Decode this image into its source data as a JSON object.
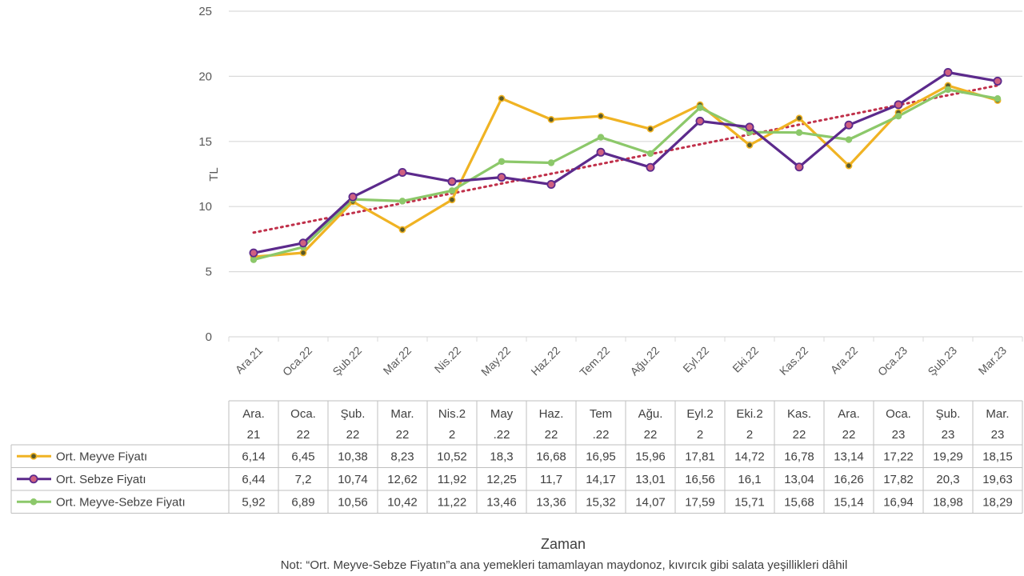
{
  "chart_data": {
    "type": "line",
    "xlabel": "Zaman",
    "ylabel": "TL",
    "ylim": [
      0,
      25
    ],
    "yticks": [
      "0",
      "5",
      "10",
      "15",
      "20",
      "25"
    ],
    "grid": true,
    "categories": [
      "Ara.21",
      "Oca.22",
      "Şub.22",
      "Mar.22",
      "Nis.22",
      "May.22",
      "Haz.22",
      "Tem.22",
      "Ağu.22",
      "Eyl.22",
      "Eki.22",
      "Kas.22",
      "Ara.22",
      "Oca.23",
      "Şub.23",
      "Mar.23"
    ],
    "table_headers": [
      [
        "Ara.",
        "21"
      ],
      [
        "Oca.",
        "22"
      ],
      [
        "Şub.",
        "22"
      ],
      [
        "Mar.",
        "22"
      ],
      [
        "Nis.2",
        "2"
      ],
      [
        "May",
        ".22"
      ],
      [
        "Haz.",
        "22"
      ],
      [
        "Tem",
        ".22"
      ],
      [
        "Ağu.",
        "22"
      ],
      [
        "Eyl.2",
        "2"
      ],
      [
        "Eki.2",
        "2"
      ],
      [
        "Kas.",
        "22"
      ],
      [
        "Ara.",
        "22"
      ],
      [
        "Oca.",
        "23"
      ],
      [
        "Şub.",
        "23"
      ],
      [
        "Mar.",
        "23"
      ]
    ],
    "series": [
      {
        "name": "Ort. Meyve Fiyatı",
        "color": "#F0B323",
        "marker_color": "#5a5a2a",
        "values": [
          6.14,
          6.45,
          10.38,
          8.23,
          10.52,
          18.3,
          16.68,
          16.95,
          15.96,
          17.81,
          14.72,
          16.78,
          13.14,
          17.22,
          19.29,
          18.15
        ],
        "labels": [
          "6,14",
          "6,45",
          "10,38",
          "8,23",
          "10,52",
          "18,3",
          "16,68",
          "16,95",
          "15,96",
          "17,81",
          "14,72",
          "16,78",
          "13,14",
          "17,22",
          "19,29",
          "18,15"
        ]
      },
      {
        "name": "Ort. Sebze Fiyatı",
        "color": "#5C2A8C",
        "marker_color": "#D06080",
        "values": [
          6.44,
          7.2,
          10.74,
          12.62,
          11.92,
          12.25,
          11.7,
          14.17,
          13.01,
          16.56,
          16.1,
          13.04,
          16.26,
          17.82,
          20.3,
          19.63
        ],
        "labels": [
          "6,44",
          "7,2",
          "10,74",
          "12,62",
          "11,92",
          "12,25",
          "11,7",
          "14,17",
          "13,01",
          "16,56",
          "16,1",
          "13,04",
          "16,26",
          "17,82",
          "20,3",
          "19,63"
        ]
      },
      {
        "name": "Ort. Meyve-Sebze Fiyatı",
        "color": "#8CC86A",
        "marker_color": "#8CC86A",
        "values": [
          5.92,
          6.89,
          10.56,
          10.42,
          11.22,
          13.46,
          13.36,
          15.32,
          14.07,
          17.59,
          15.71,
          15.68,
          15.14,
          16.94,
          18.98,
          18.29
        ],
        "labels": [
          "5,92",
          "6,89",
          "10,56",
          "10,42",
          "11,22",
          "13,46",
          "13,36",
          "15,32",
          "14,07",
          "17,59",
          "15,71",
          "15,68",
          "15,14",
          "16,94",
          "18,98",
          "18,29"
        ]
      }
    ],
    "trendline": {
      "color": "#C0304A",
      "from": 8.0,
      "to": 19.3
    }
  },
  "note": "Not: “Ort. Meyve-Sebze Fiyatın”a ana yemekleri tamamlayan maydonoz, kıvırcık gibi salata yeşillikleri dâhil"
}
